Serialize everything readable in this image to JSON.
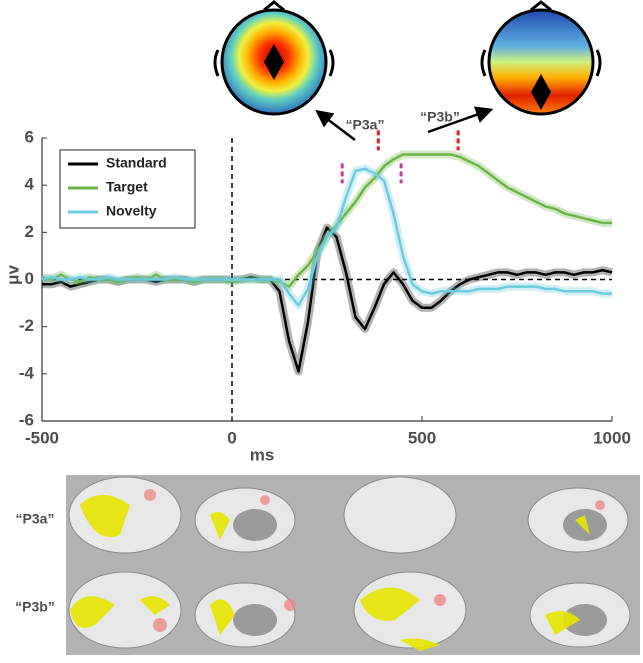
{
  "chart_data": {
    "type": "line",
    "xlabel": "ms",
    "ylabel": "μv",
    "xlim": [
      -500,
      1000
    ],
    "ylim": [
      -6,
      6
    ],
    "xticks": [
      -500,
      0,
      500,
      1000
    ],
    "yticks": [
      -6,
      -4,
      -2,
      0,
      2,
      4,
      6
    ],
    "legend": "upper left",
    "x": [
      -500,
      -475,
      -450,
      -425,
      -400,
      -375,
      -350,
      -325,
      -300,
      -275,
      -250,
      -225,
      -200,
      -175,
      -150,
      -125,
      -100,
      -75,
      -50,
      -25,
      0,
      25,
      50,
      75,
      100,
      125,
      150,
      175,
      200,
      225,
      250,
      275,
      300,
      325,
      350,
      375,
      400,
      425,
      450,
      475,
      500,
      525,
      550,
      575,
      600,
      625,
      650,
      675,
      700,
      725,
      750,
      775,
      800,
      825,
      850,
      875,
      900,
      925,
      950,
      975,
      1000
    ],
    "series": [
      {
        "name": "Standard",
        "color": "#000000",
        "values": [
          -0.2,
          -0.2,
          -0.1,
          -0.3,
          -0.2,
          -0.1,
          0,
          0,
          -0.1,
          0,
          0,
          0,
          -0.1,
          0,
          0,
          0,
          -0.1,
          0,
          0,
          0,
          0,
          0,
          0.1,
          0,
          0,
          -0.5,
          -2.6,
          -3.9,
          -1.8,
          1.2,
          2.2,
          1.8,
          0.3,
          -1.6,
          -2.1,
          -1.2,
          -0.2,
          0.3,
          -0.2,
          -0.9,
          -1.2,
          -1.2,
          -0.9,
          -0.5,
          -0.2,
          0,
          0.1,
          0.2,
          0.3,
          0.3,
          0.2,
          0.3,
          0.3,
          0.2,
          0.3,
          0.3,
          0.2,
          0.3,
          0.3,
          0.4,
          0.3
        ]
      },
      {
        "name": "Target",
        "color": "#6ab445",
        "values": [
          0.1,
          0,
          0.2,
          0,
          -0.1,
          0.1,
          0,
          0,
          -0.1,
          0,
          0.1,
          0,
          0.2,
          0,
          0,
          0,
          -0.1,
          0,
          0,
          0,
          -0.1,
          0,
          0,
          0,
          0,
          -0.1,
          -0.3,
          0.2,
          0.6,
          1.2,
          1.8,
          2.3,
          2.8,
          3.3,
          3.9,
          4.3,
          4.8,
          5.1,
          5.3,
          5.3,
          5.3,
          5.3,
          5.3,
          5.3,
          5.2,
          5.0,
          4.8,
          4.5,
          4.2,
          3.9,
          3.7,
          3.5,
          3.3,
          3.1,
          3.0,
          2.8,
          2.7,
          2.6,
          2.5,
          2.4,
          2.4
        ]
      },
      {
        "name": "Novelty",
        "color": "#6dcbe0",
        "values": [
          0,
          0.1,
          0,
          0,
          0.1,
          0,
          0,
          0.1,
          0,
          0,
          0,
          0,
          0,
          0,
          0.1,
          0,
          0,
          0,
          0,
          0,
          0,
          0,
          0,
          0,
          0,
          0,
          -0.6,
          -1.1,
          -0.4,
          1.0,
          1.8,
          2.2,
          3.5,
          4.6,
          4.7,
          4.5,
          4.2,
          2.8,
          1.0,
          -0.2,
          -0.5,
          -0.6,
          -0.5,
          -0.5,
          -0.5,
          -0.5,
          -0.4,
          -0.4,
          -0.4,
          -0.3,
          -0.3,
          -0.3,
          -0.3,
          -0.4,
          -0.4,
          -0.5,
          -0.5,
          -0.5,
          -0.5,
          -0.6,
          -0.6
        ]
      }
    ],
    "window_markers": [
      {
        "color": "#c0409a",
        "y": 4.5,
        "x": [
          290,
          445
        ]
      },
      {
        "color": "#e0201e",
        "y": 5.9,
        "x": [
          385,
          595
        ]
      }
    ],
    "annotations": [
      "“P3a”",
      "“P3b”"
    ]
  },
  "brain_panels": {
    "rows": [
      "“P3a”",
      "“P3b”"
    ]
  }
}
